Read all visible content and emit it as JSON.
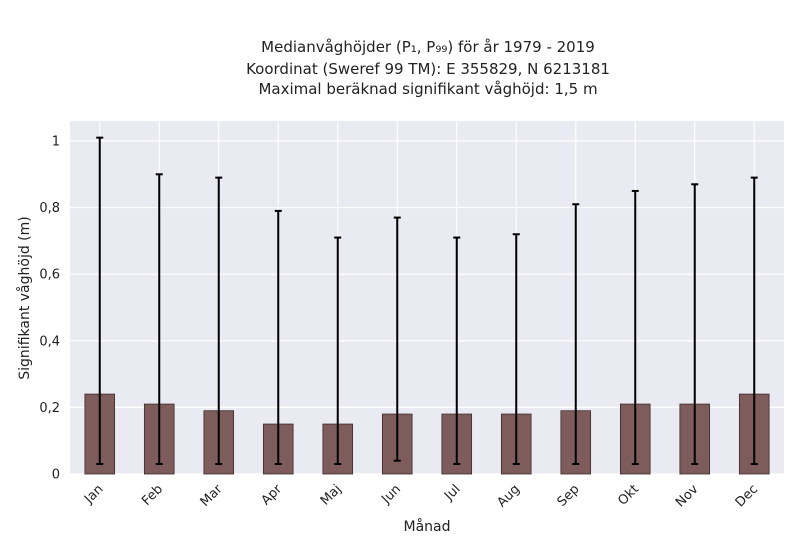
{
  "chart_data": {
    "type": "bar",
    "title_lines": [
      "Medianvåghöjder (P₁, P₉₉) för år 1979 - 2019",
      "Koordinat (Sweref 99 TM): E 355829, N 6213181",
      "Maximal beräknad signifikant våghöjd: 1,5 m"
    ],
    "xlabel": "Månad",
    "ylabel": "Signifikant våghöjd (m)",
    "categories": [
      "Jan",
      "Feb",
      "Mar",
      "Apr",
      "Maj",
      "Jun",
      "Jul",
      "Aug",
      "Sep",
      "Okt",
      "Nov",
      "Dec"
    ],
    "series": [
      {
        "values": [
          0.24,
          0.21,
          0.19,
          0.15,
          0.15,
          0.18,
          0.18,
          0.18,
          0.19,
          0.21,
          0.21,
          0.24
        ],
        "p1": [
          0.03,
          0.03,
          0.03,
          0.03,
          0.03,
          0.04,
          0.03,
          0.03,
          0.03,
          0.03,
          0.03,
          0.03
        ],
        "p99": [
          1.01,
          0.9,
          0.89,
          0.79,
          0.71,
          0.77,
          0.71,
          0.72,
          0.81,
          0.85,
          0.87,
          0.89
        ]
      }
    ],
    "ylim": [
      0,
      1.06
    ],
    "yticks": [
      0,
      0.2,
      0.4,
      0.6,
      0.8,
      1.0
    ],
    "ytick_labels": [
      "0",
      "0,2",
      "0,4",
      "0,6",
      "0,8",
      "1"
    ],
    "grid": true,
    "colors": {
      "bar": "#7f5c5c",
      "bar_edge": "#3a2b2b",
      "errorbar": "#000000",
      "plot_bg": "#eaeaf2",
      "grid": "#ffffff"
    }
  }
}
